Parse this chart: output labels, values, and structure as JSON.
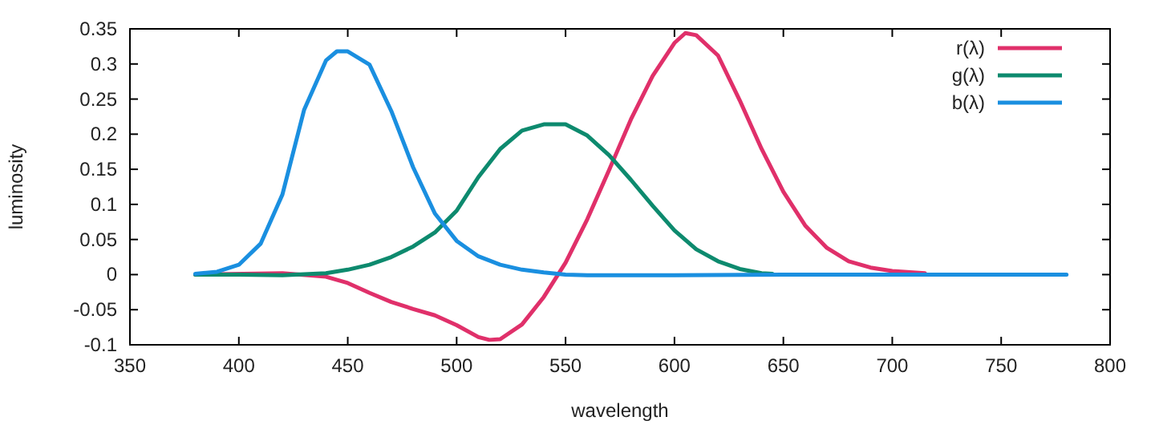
{
  "chart_data": {
    "type": "line",
    "xlabel": "wavelength",
    "ylabel": "luminosity",
    "xlim": [
      350,
      800
    ],
    "xticks": [
      350,
      400,
      450,
      500,
      550,
      600,
      650,
      700,
      750,
      800
    ],
    "ylim": [
      -0.1,
      0.35
    ],
    "yticks": [
      -0.1,
      -0.05,
      0,
      0.05,
      0.1,
      0.15,
      0.2,
      0.25,
      0.3,
      0.35
    ],
    "grid": false,
    "legend": "top right",
    "marker": "none",
    "line_style": "solid",
    "series": [
      {
        "name": "r(λ)",
        "color": "#e0306a",
        "x": [
          380,
          420,
          440,
          450,
          460,
          470,
          480,
          490,
          500,
          510,
          515,
          520,
          530,
          540,
          550,
          560,
          570,
          580,
          590,
          600,
          605,
          610,
          620,
          630,
          640,
          650,
          660,
          670,
          680,
          690,
          700,
          715
        ],
        "values": [
          0,
          0.002,
          -0.003,
          -0.012,
          -0.026,
          -0.039,
          -0.049,
          -0.058,
          -0.072,
          -0.089,
          -0.093,
          -0.092,
          -0.071,
          -0.032,
          0.017,
          0.079,
          0.149,
          0.221,
          0.283,
          0.33,
          0.344,
          0.341,
          0.312,
          0.248,
          0.179,
          0.118,
          0.07,
          0.038,
          0.019,
          0.01,
          0.005,
          0.002
        ]
      },
      {
        "name": "g(λ)",
        "color": "#0d8a6e",
        "x": [
          380,
          400,
          420,
          440,
          450,
          460,
          470,
          480,
          490,
          500,
          510,
          520,
          530,
          540,
          550,
          560,
          570,
          580,
          590,
          600,
          610,
          620,
          630,
          640,
          645
        ],
        "values": [
          0,
          0,
          -0.001,
          0.002,
          0.007,
          0.014,
          0.025,
          0.04,
          0.06,
          0.091,
          0.139,
          0.179,
          0.205,
          0.214,
          0.214,
          0.198,
          0.17,
          0.135,
          0.098,
          0.063,
          0.036,
          0.019,
          0.008,
          0.002,
          0.001
        ]
      },
      {
        "name": "b(λ)",
        "color": "#1a8fe0",
        "x": [
          380,
          390,
          400,
          410,
          420,
          430,
          440,
          445,
          450,
          460,
          470,
          480,
          490,
          500,
          510,
          520,
          530,
          540,
          550,
          560,
          580,
          600,
          650,
          700,
          780
        ],
        "values": [
          0.001,
          0.004,
          0.014,
          0.044,
          0.114,
          0.235,
          0.305,
          0.318,
          0.318,
          0.299,
          0.233,
          0.153,
          0.087,
          0.048,
          0.026,
          0.014,
          0.007,
          0.003,
          0,
          -0.001,
          -0.001,
          -0.001,
          0,
          0,
          0
        ]
      }
    ]
  }
}
